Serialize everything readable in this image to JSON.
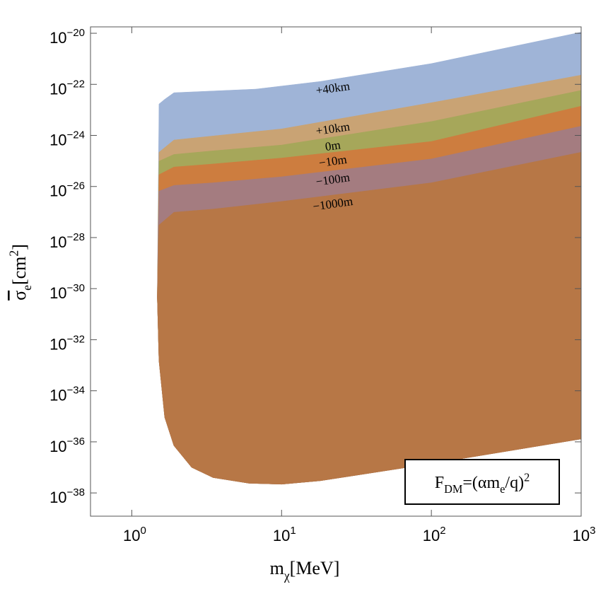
{
  "chart_data": {
    "type": "area",
    "x_label": [
      {
        "text": "m"
      },
      {
        "text": "χ",
        "role": "sub"
      },
      {
        "text": "[MeV]"
      }
    ],
    "y_label": [
      {
        "text": "σ",
        "role": "overline"
      },
      {
        "text": "e",
        "role": "sub"
      },
      {
        "text": "[cm"
      },
      {
        "text": "2",
        "role": "sup"
      },
      {
        "text": "]"
      }
    ],
    "annotation": [
      {
        "text": "F"
      },
      {
        "text": "DM",
        "role": "sub"
      },
      {
        "text": "=(αm"
      },
      {
        "text": "e",
        "role": "sub"
      },
      {
        "text": "/q)"
      },
      {
        "text": "2",
        "role": "sup"
      }
    ],
    "x_scale": "log",
    "y_scale": "log",
    "xlim": [
      0.53,
      1000
    ],
    "ylim": [
      1.23e-39,
      1.78e-20
    ],
    "xticks": [
      {
        "value": 1,
        "base": "10",
        "exponent": "0"
      },
      {
        "value": 10,
        "base": "10",
        "exponent": "1"
      },
      {
        "value": 100,
        "base": "10",
        "exponent": "2"
      },
      {
        "value": 1000,
        "base": "10",
        "exponent": "3"
      }
    ],
    "yticks": [
      {
        "value": 1e-20,
        "base": "10",
        "exponent": "−20"
      },
      {
        "value": 1e-22,
        "base": "10",
        "exponent": "−22"
      },
      {
        "value": 1e-24,
        "base": "10",
        "exponent": "−24"
      },
      {
        "value": 1e-26,
        "base": "10",
        "exponent": "−26"
      },
      {
        "value": 1e-28,
        "base": "10",
        "exponent": "−28"
      },
      {
        "value": 1e-30,
        "base": "10",
        "exponent": "−30"
      },
      {
        "value": 1e-32,
        "base": "10",
        "exponent": "−32"
      },
      {
        "value": 1e-34,
        "base": "10",
        "exponent": "−34"
      },
      {
        "value": 1e-36,
        "base": "10",
        "exponent": "−36"
      },
      {
        "value": 1e-38,
        "base": "10",
        "exponent": "−38"
      }
    ],
    "lower": {
      "x": [
        1.48,
        1.52,
        1.66,
        1.91,
        2.51,
        3.49,
        6.04,
        10,
        18.1,
        31.3,
        100,
        1000
      ],
      "values": [
        4.7e-31,
        1.5e-33,
        9.1e-36,
        7.1e-37,
        1e-37,
        4e-38,
        2.4e-38,
        2.2e-38,
        3e-38,
        4.9e-38,
        1.4e-37,
        1.3e-36
      ]
    },
    "series": [
      {
        "name": "+40km",
        "color": "#9fb4d7",
        "x": [
          1.52,
          1.66,
          1.91,
          6.74,
          18.1,
          100,
          1000
        ],
        "values": [
          1.7e-23,
          2.6e-23,
          4.7e-23,
          6.5e-23,
          1.3e-22,
          6.5e-22,
          1.1e-20
        ]
      },
      {
        "name": "+10km",
        "color": "#c9a374",
        "x": [
          1.52,
          1.91,
          3.49,
          10,
          100,
          1000
        ],
        "values": [
          2.2e-25,
          6.6e-25,
          9.5e-25,
          1.8e-24,
          1.9e-23,
          2.3e-22
        ]
      },
      {
        "name": "0m",
        "color": "#a6a75a",
        "x": [
          1.52,
          1.91,
          3.49,
          10,
          100,
          1000
        ],
        "values": [
          9.8e-26,
          1.8e-25,
          2.5e-25,
          4.2e-25,
          3.5e-24,
          5.8e-23
        ]
      },
      {
        "name": "−10m",
        "color": "#cd7d3f",
        "x": [
          1.52,
          1.91,
          3.49,
          10,
          100,
          1000
        ],
        "values": [
          2.9e-26,
          5.8e-26,
          7.6e-26,
          1.3e-25,
          5.8e-25,
          1.4e-23
        ]
      },
      {
        "name": "−100m",
        "color": "#a47c80",
        "x": [
          1.52,
          1.91,
          3.49,
          10,
          100,
          1000
        ],
        "values": [
          6.6e-27,
          1.1e-26,
          1.4e-26,
          2.4e-26,
          1.2e-25,
          2.3e-24
        ]
      },
      {
        "name": "−1000m",
        "color": "#b77746",
        "x": [
          1.52,
          1.91,
          3.49,
          10,
          100,
          1000
        ],
        "values": [
          3.1e-28,
          9.8e-28,
          1.3e-27,
          2.6e-27,
          1.4e-26,
          2.2e-25
        ]
      }
    ]
  }
}
